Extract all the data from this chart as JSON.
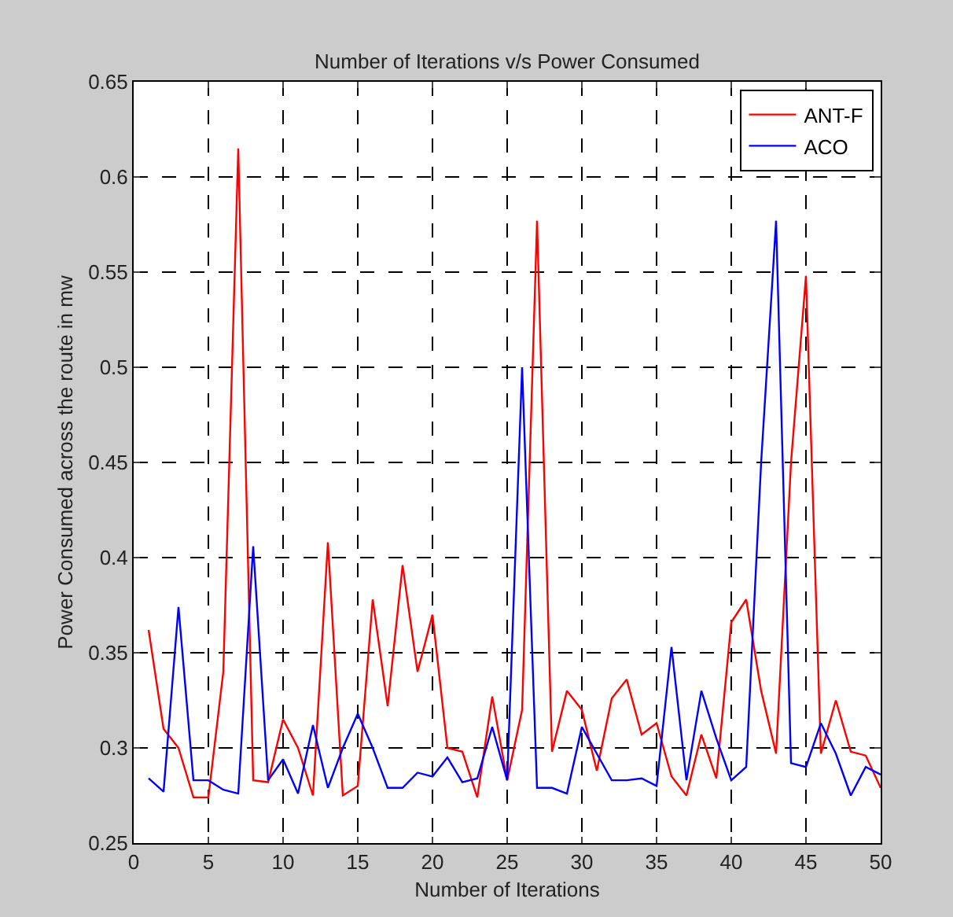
{
  "chart_data": {
    "type": "line",
    "title": "Number of Iterations v/s Power Consumed",
    "xlabel": "Number of Iterations",
    "ylabel": "Power Consumed across the route in mw",
    "x": [
      1,
      2,
      3,
      4,
      5,
      6,
      7,
      8,
      9,
      10,
      11,
      12,
      13,
      14,
      15,
      16,
      17,
      18,
      19,
      20,
      21,
      22,
      23,
      24,
      25,
      26,
      27,
      28,
      29,
      30,
      31,
      32,
      33,
      34,
      35,
      36,
      37,
      38,
      39,
      40,
      41,
      42,
      43,
      44,
      45,
      46,
      47,
      48,
      49,
      50
    ],
    "series": [
      {
        "name": "ANT-F",
        "color": "#ff0000",
        "values": [
          0.362,
          0.31,
          0.3,
          0.274,
          0.274,
          0.34,
          0.615,
          0.283,
          0.282,
          0.315,
          0.3,
          0.275,
          0.408,
          0.275,
          0.28,
          0.378,
          0.322,
          0.396,
          0.34,
          0.37,
          0.3,
          0.298,
          0.274,
          0.327,
          0.283,
          0.32,
          0.577,
          0.298,
          0.33,
          0.32,
          0.288,
          0.326,
          0.336,
          0.307,
          0.313,
          0.285,
          0.275,
          0.307,
          0.284,
          0.366,
          0.378,
          0.33,
          0.297,
          0.45,
          0.548,
          0.297,
          0.325,
          0.298,
          0.296,
          0.279
        ]
      },
      {
        "name": "ACO",
        "color": "#0000ff",
        "values": [
          0.284,
          0.277,
          0.374,
          0.283,
          0.283,
          0.278,
          0.276,
          0.406,
          0.283,
          0.294,
          0.276,
          0.312,
          0.279,
          0.3,
          0.318,
          0.3,
          0.279,
          0.279,
          0.287,
          0.285,
          0.295,
          0.282,
          0.284,
          0.311,
          0.283,
          0.5,
          0.279,
          0.279,
          0.276,
          0.311,
          0.297,
          0.283,
          0.283,
          0.284,
          0.28,
          0.353,
          0.283,
          0.33,
          0.305,
          0.283,
          0.29,
          0.45,
          0.577,
          0.292,
          0.29,
          0.313,
          0.297,
          0.275,
          0.29,
          0.286
        ]
      }
    ],
    "xlim": [
      0,
      50
    ],
    "xticks": [
      0,
      5,
      10,
      15,
      20,
      25,
      30,
      35,
      40,
      45,
      50
    ],
    "ylim": [
      0.25,
      0.65
    ],
    "yticks": [
      0.25,
      0.3,
      0.35,
      0.4,
      0.45,
      0.5,
      0.55,
      0.6,
      0.65
    ],
    "grid": true,
    "legend": "top right",
    "marker": "none",
    "line_style": "solid"
  }
}
